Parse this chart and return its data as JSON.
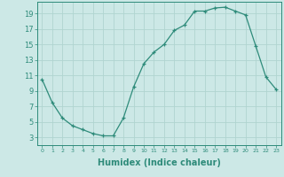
{
  "x": [
    0,
    1,
    2,
    3,
    4,
    5,
    6,
    7,
    8,
    9,
    10,
    11,
    12,
    13,
    14,
    15,
    16,
    17,
    18,
    19,
    20,
    21,
    22,
    23
  ],
  "y": [
    10.5,
    7.5,
    5.5,
    4.5,
    4.0,
    3.5,
    3.2,
    3.2,
    5.5,
    9.5,
    12.5,
    14.0,
    15.0,
    16.8,
    17.5,
    19.3,
    19.3,
    19.7,
    19.8,
    19.3,
    18.8,
    14.8,
    10.8,
    9.2
  ],
  "line_color": "#2e8b7a",
  "bg_color": "#cce8e6",
  "grid_color": "#b0d4d0",
  "xlabel": "Humidex (Indice chaleur)",
  "ylabel_ticks": [
    3,
    5,
    7,
    9,
    11,
    13,
    15,
    17,
    19
  ],
  "xtick_labels": [
    "0",
    "1",
    "2",
    "3",
    "4",
    "5",
    "6",
    "7",
    "8",
    "9",
    "10",
    "11",
    "12",
    "13",
    "14",
    "15",
    "16",
    "17",
    "18",
    "19",
    "20",
    "21",
    "22",
    "23"
  ],
  "ylim": [
    2.0,
    20.5
  ],
  "xlim": [
    -0.5,
    23.5
  ],
  "tick_color": "#2e8b7a",
  "label_color": "#2e8b7a",
  "xlabel_fontsize": 7,
  "ytick_fontsize": 6,
  "xtick_fontsize": 4.5
}
